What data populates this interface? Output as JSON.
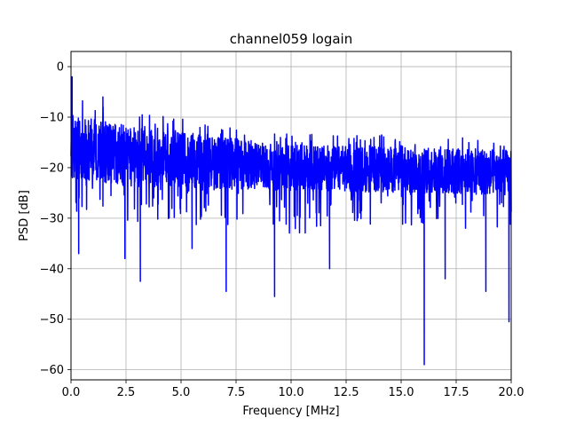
{
  "chart_data": {
    "type": "line",
    "title": "channel059 logain",
    "xlabel": "Frequency [MHz]",
    "ylabel": "PSD [dB]",
    "xlim": [
      0,
      20
    ],
    "ylim": [
      -62,
      3
    ],
    "x_ticks": [
      0.0,
      2.5,
      5.0,
      7.5,
      10.0,
      12.5,
      15.0,
      17.5,
      20.0
    ],
    "x_tick_labels": [
      "0.0",
      "2.5",
      "5.0",
      "7.5",
      "10.0",
      "12.5",
      "15.0",
      "17.5",
      "20.0"
    ],
    "y_ticks": [
      0,
      -10,
      -20,
      -30,
      -40,
      -50,
      -60
    ],
    "y_tick_labels": [
      "0",
      "−10",
      "−20",
      "−30",
      "−40",
      "−50",
      "−60"
    ],
    "grid": true,
    "legend": "none",
    "series": [
      {
        "color": "#0000ff",
        "x_start": 0.0,
        "x_end": 20.0,
        "baseline_trend": [
          [
            0,
            -16
          ],
          [
            3,
            -18
          ],
          [
            10,
            -20
          ],
          [
            20,
            -21
          ]
        ],
        "upper_envelope_trend": [
          [
            0,
            -6
          ],
          [
            3,
            -9
          ],
          [
            10,
            -13
          ],
          [
            20,
            -14
          ]
        ],
        "lower_envelope_trend": [
          [
            0,
            -30
          ],
          [
            3,
            -31
          ],
          [
            10,
            -33
          ],
          [
            20,
            -32
          ]
        ],
        "notable_points": [
          {
            "x": 0.05,
            "y": -2
          },
          {
            "x": 0.35,
            "y": -37
          },
          {
            "x": 1.45,
            "y": -6
          },
          {
            "x": 2.45,
            "y": -38
          },
          {
            "x": 3.15,
            "y": -42.5
          },
          {
            "x": 5.5,
            "y": -36
          },
          {
            "x": 7.05,
            "y": -44.5
          },
          {
            "x": 9.25,
            "y": -45.5
          },
          {
            "x": 11.75,
            "y": -40
          },
          {
            "x": 16.05,
            "y": -59
          },
          {
            "x": 17.0,
            "y": -42
          },
          {
            "x": 18.85,
            "y": -44.5
          },
          {
            "x": 19.9,
            "y": -50.5
          }
        ]
      }
    ]
  }
}
